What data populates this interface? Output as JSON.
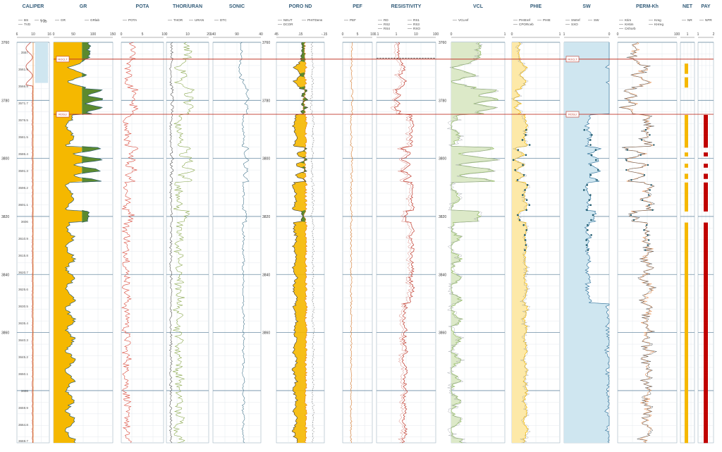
{
  "chart_data": {
    "type": "line",
    "title": "",
    "depth_axis": {
      "label_top": "TVD",
      "range": [
        3760,
        3898
      ],
      "major_ticks": [
        3760,
        3780,
        3800,
        3820,
        3840,
        3860
      ]
    },
    "tvd_labels": [
      "3557",
      "3561.9",
      "3566.8",
      "3571.7",
      "3576.5",
      "3581.5",
      "3586.4",
      "3591.3",
      "3596.2",
      "3601.1",
      "3606",
      "3610.9",
      "3615.8",
      "3620.7",
      "3625.6",
      "3630.5",
      "3635.4",
      "3640.3",
      "3645.2",
      "3650.1",
      "3655",
      "3659.9",
      "3664.8",
      "3669.7"
    ],
    "zone_markers": [
      {
        "name": "ROCLT",
        "depth": 3765.8
      },
      {
        "name": "ROSLI",
        "depth": 3784.8
      }
    ],
    "tracks": [
      {
        "id": "caliper",
        "title": "CALIPER",
        "legend": [
          "BS",
          "CAL",
          "TVD"
        ],
        "scale": [
          "6",
          "10",
          "16"
        ],
        "colors": {
          "BS": "#e67e22",
          "CAL": "#c0392b",
          "fill": "#cfe6f0"
        }
      },
      {
        "id": "gr",
        "title": "GR",
        "legend": [
          "GR",
          "GRlab"
        ],
        "scale": [
          "0",
          "50",
          "100",
          "150"
        ],
        "colors": {
          "GR": "#6a8f3a",
          "GRlab": "#2e5e6e",
          "sand": "#f5b800",
          "shale": "#5c8a2e"
        }
      },
      {
        "id": "pota",
        "title": "POTA",
        "legend": [
          "POTA"
        ],
        "scale": [
          "0",
          "5",
          "10"
        ],
        "colors": {
          "POTA": "#d94b3d"
        }
      },
      {
        "id": "thor",
        "title": "THOR/URAN",
        "legend": [
          "THOR",
          "URAN"
        ],
        "scale": [
          "0",
          "10",
          "20"
        ],
        "colors": {
          "THOR": "#8aa84e",
          "URAN": "#555555"
        }
      },
      {
        "id": "sonic",
        "title": "SONIC",
        "legend": [
          "DTC"
        ],
        "scale": [
          "140",
          "90",
          "40"
        ],
        "colors": {
          "DTC": "#4a7a90"
        }
      },
      {
        "id": "poro",
        "title": "PORO ND",
        "legend": [
          "NEUT",
          "PHITDens",
          "DCOR"
        ],
        "scale": [
          "45",
          ".15",
          "-.15"
        ],
        "colors": {
          "NEUT": "#333333",
          "PHITDens": "#e67e22",
          "DCOR": "#555555"
        }
      },
      {
        "id": "pef",
        "title": "PEF",
        "legend": [
          "PEF"
        ],
        "scale": [
          "0",
          "5",
          "10"
        ],
        "colors": {
          "PEF": "#d4782a"
        }
      },
      {
        "id": "res",
        "title": "RESISTIVITY",
        "legend": [
          "RD",
          "RS1",
          "RS2",
          "RS3",
          "RS4",
          "RXO"
        ],
        "scale": [
          "0.1",
          "1",
          "10",
          "100"
        ],
        "colors": {
          "RD": "#c0392b",
          "RS": "#d98880",
          "RXO": "#222222"
        }
      },
      {
        "id": "vcl",
        "title": "VCL",
        "legend": [
          "VCLref"
        ],
        "scale": [
          "0",
          "1"
        ],
        "colors": {
          "VCL": "#8fb860",
          "fill": "#dce9c8"
        }
      },
      {
        "id": "phie",
        "title": "PHIE",
        "legend": [
          "PHIEref",
          "PHIE",
          "CPORceb"
        ],
        "scale": [
          "0",
          "1"
        ],
        "colors": {
          "ref": "#9aa0a6",
          "PHIE": "#f5b800",
          "core": "#1e5a6e"
        }
      },
      {
        "id": "sw",
        "title": "SW",
        "legend": [
          "SWref",
          "SW",
          "SXO"
        ],
        "scale": [
          "1",
          "0"
        ],
        "colors": {
          "SW": "#3b7aa0",
          "fill": "#cfe6f0",
          "core": "#1e5a6e"
        }
      },
      {
        "id": "perm",
        "title": "PERM-Kh",
        "legend": [
          "Ktim",
          "Kreg",
          "KHtim",
          "KHreg",
          "CKhorb"
        ],
        "scale": [
          "0",
          "100"
        ],
        "colors": {
          "Ktim": "#e8955a",
          "Kreg": "#555555",
          "core": "#1e5a6e"
        }
      },
      {
        "id": "net",
        "title": "NET",
        "legend": [
          "NR"
        ],
        "scale": [
          "1"
        ],
        "colors": {
          "NET": "#f5b800"
        }
      },
      {
        "id": "pay",
        "title": "PAY",
        "legend": [
          "NPR"
        ],
        "scale": [
          "1",
          "2"
        ],
        "colors": {
          "PAY": "#c00000"
        }
      }
    ]
  }
}
